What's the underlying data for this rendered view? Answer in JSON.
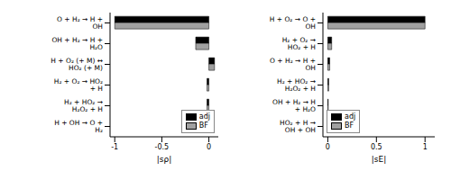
{
  "chart_data": [
    {
      "type": "bar",
      "orientation": "horizontal",
      "categories": [
        "O + H₂ → H + OH",
        "OH + H₂ → H + H₂O",
        "H + O₂ (+ M) ↔ HO₂ (+ M)",
        "H₂ + O₂ → HO₂ + H",
        "H₂ + HO₂ → H₂O₂ + H",
        "H + OH → O + H₂"
      ],
      "series": [
        {
          "name": "adj",
          "color": "#000000",
          "values": [
            -1,
            -0.14,
            0.06,
            -0.02,
            -0.02,
            -0.01
          ]
        },
        {
          "name": "BF",
          "color": "#a0a0a0",
          "values": [
            -1,
            -0.14,
            0.06,
            -0.02,
            -0.02,
            -0.01
          ]
        }
      ],
      "x_label": "|sρ|",
      "xlim": [
        -1.05,
        0.1
      ],
      "xticks": [
        -1,
        -0.5,
        0
      ],
      "legend": "lower right"
    },
    {
      "type": "bar",
      "orientation": "horizontal",
      "categories": [
        "H + O₂ → O + OH",
        "H₂ + O₂ → HO₂ + H",
        "O + H₂ → H + OH",
        "H₂ + HO₂ → H₂O₂ + H",
        "OH + H₂ → H + H₂O",
        "HO₂ + H → OH + OH"
      ],
      "series": [
        {
          "name": "adj",
          "color": "#000000",
          "values": [
            1,
            0.04,
            0.02,
            0.01,
            0.005,
            0.002
          ]
        },
        {
          "name": "BF",
          "color": "#a0a0a0",
          "values": [
            1,
            0.04,
            0.02,
            0.01,
            0.005,
            0.002
          ]
        }
      ],
      "x_label": "|sE|",
      "xlim": [
        -0.05,
        1.1
      ],
      "xticks": [
        0,
        0.5,
        1
      ],
      "legend": "lower left"
    }
  ]
}
